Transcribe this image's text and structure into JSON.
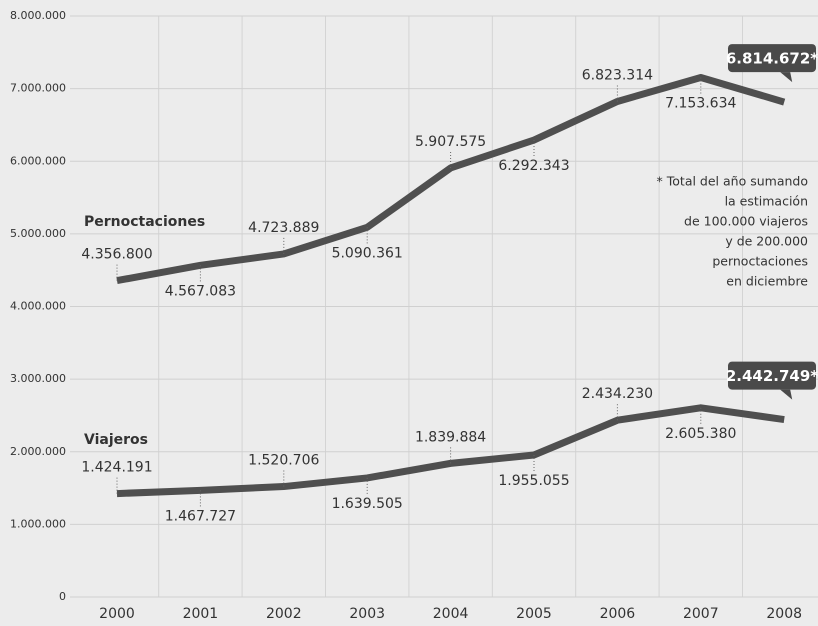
{
  "chart_data": {
    "type": "line",
    "categories": [
      "2000",
      "2001",
      "2002",
      "2003",
      "2004",
      "2005",
      "2006",
      "2007",
      "2008"
    ],
    "series": [
      {
        "name": "Pernoctaciones",
        "color": "#4f4f4f",
        "values": [
          4356800,
          4567083,
          4723889,
          5090361,
          5907575,
          6292343,
          6823314,
          7153634,
          6814672
        ],
        "value_labels": [
          "4.356.800",
          "4.567.083",
          "4.723.889",
          "5.090.361",
          "5.907.575",
          "6.292.343",
          "6.823.314",
          "7.153.634",
          "6.814.672*"
        ]
      },
      {
        "name": "Viajeros",
        "color": "#4f4f4f",
        "values": [
          1424191,
          1467727,
          1520706,
          1639505,
          1839884,
          1955055,
          2434230,
          2605380,
          2442749
        ],
        "value_labels": [
          "1.424.191",
          "1.467.727",
          "1.520.706",
          "1.639.505",
          "1.839.884",
          "1.955.055",
          "2.434.230",
          "2.605.380",
          "2.442.749*"
        ]
      }
    ],
    "ylim": [
      0,
      8000000
    ],
    "yticks": [
      0,
      {
        "value": 1000000,
        "label": "1.000.000"
      },
      {
        "value": 2000000,
        "label": "2.000.000"
      },
      {
        "value": 3000000,
        "label": "3.000.000"
      },
      {
        "value": 4000000,
        "label": "4.000.000"
      },
      {
        "value": 5000000,
        "label": "5.000.000"
      },
      {
        "value": 6000000,
        "label": "6.000.000"
      },
      {
        "value": 7000000,
        "label": "7.000.000"
      },
      {
        "value": 8000000,
        "label": "8.000.000"
      }
    ],
    "grid": true,
    "annotation": [
      "* Total del año sumando",
      "la estimación",
      "de 100.000 viajeros",
      "y de 200.000",
      "pernoctaciones",
      "en diciembre"
    ]
  }
}
